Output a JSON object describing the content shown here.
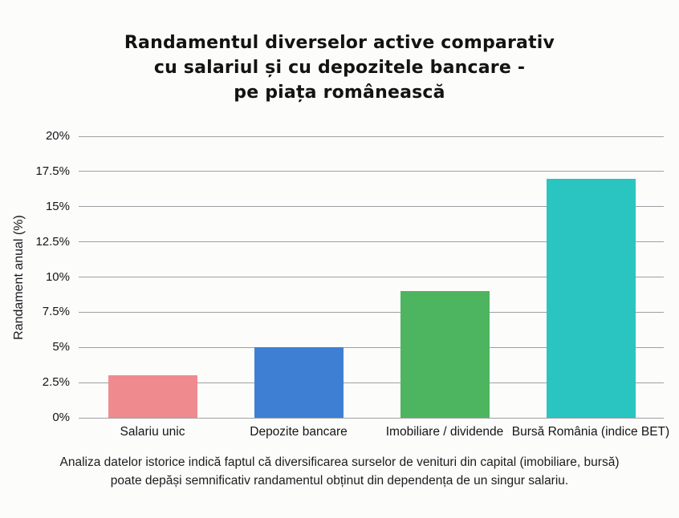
{
  "title": {
    "lines": [
      "Randamentul diverselor active comparativ",
      "cu salariul și cu depozitele bancare -",
      "pe piața românească"
    ]
  },
  "footer": {
    "lines": [
      "Analiza datelor istorice indică faptul că diversificarea surselor de venituri din capital (imobiliare, bursă)",
      "poate depăși semnificativ randamentul obținut din dependența de un singur salariu."
    ]
  },
  "colors": {
    "background": "#fcfcfa",
    "gridline": "#9da0a3",
    "text": "#17191c"
  },
  "chart_data": {
    "type": "bar",
    "title": "Randamentul diverselor active comparativ cu salariul și cu depozitele bancare - pe piața românească",
    "categories": [
      "Salariu unic",
      "Depozite bancare",
      "Imobiliare / dividende",
      "Bursă România (indice BET)"
    ],
    "values": [
      3,
      5,
      9,
      17
    ],
    "bar_colors": [
      "#ef8b8f",
      "#3e7fd4",
      "#4db55f",
      "#2ac4c1"
    ],
    "xlabel": "",
    "ylabel": "Randament anual (%)",
    "ylim": [
      0,
      20
    ],
    "yticks": [
      0,
      2.5,
      5,
      7.5,
      10,
      12.5,
      15,
      17.5,
      20
    ],
    "ytick_labels": [
      "0%",
      "2.5%",
      "5%",
      "7.5%",
      "10%",
      "12.5%",
      "15%",
      "17.5%",
      "20%"
    ],
    "grid": true,
    "legend": false,
    "caption": "Analiza datelor istorice indică faptul că diversificarea surselor de venituri din capital (imobiliare, bursă) poate depăși semnificativ randamentul obținut din dependența de un singur salariu."
  }
}
